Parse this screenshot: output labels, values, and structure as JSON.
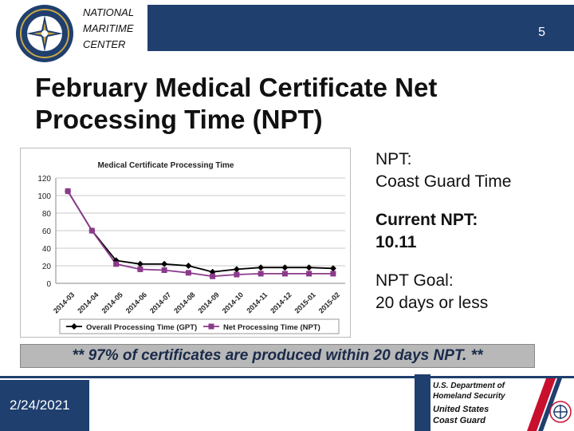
{
  "header": {
    "org_line1": "NATIONAL",
    "org_line2": "MARITIME",
    "org_line3": "CENTER",
    "slide_number": "5"
  },
  "title": "February Medical Certificate Net Processing Time (NPT)",
  "side": {
    "npt_label": "NPT:",
    "npt_def": "Coast Guard Time",
    "current_label": "Current NPT:",
    "current_value": "10.11",
    "goal_label": "NPT Goal:",
    "goal_value": "20 days or less"
  },
  "banner": "** 97% of certificates are produced within 20 days NPT. **",
  "footer": {
    "date": "2/24/2021",
    "dhs_line1": "U.S. Department of",
    "dhs_line2": "Homeland Security",
    "uscg_line1": "United States",
    "uscg_line2": "Coast Guard"
  },
  "colors": {
    "navy": "#1f3f6e",
    "series1": "#000000",
    "series2": "#8b3a8b",
    "uscg_red": "#c8102e"
  },
  "chart_data": {
    "type": "line",
    "title": "Medical Certificate Processing Time",
    "categories": [
      "2014-03",
      "2014-04",
      "2014-05",
      "2014-06",
      "2014-07",
      "2014-08",
      "2014-09",
      "2014-10",
      "2014-11",
      "2014-12",
      "2015-01",
      "2015-02"
    ],
    "series": [
      {
        "name": "Overall Processing Time (GPT)",
        "values": [
          105,
          60,
          26,
          22,
          22,
          20,
          13,
          16,
          18,
          18,
          18,
          17
        ],
        "marker": "diamond"
      },
      {
        "name": "Net Processing Time (NPT)",
        "values": [
          105,
          60,
          22,
          16,
          15,
          12,
          8,
          10,
          11,
          11,
          11,
          11
        ],
        "marker": "square"
      }
    ],
    "ylim": [
      0,
      120
    ],
    "yticks": [
      0,
      20,
      40,
      60,
      80,
      100,
      120
    ],
    "grid": true,
    "legend": "bottom"
  }
}
